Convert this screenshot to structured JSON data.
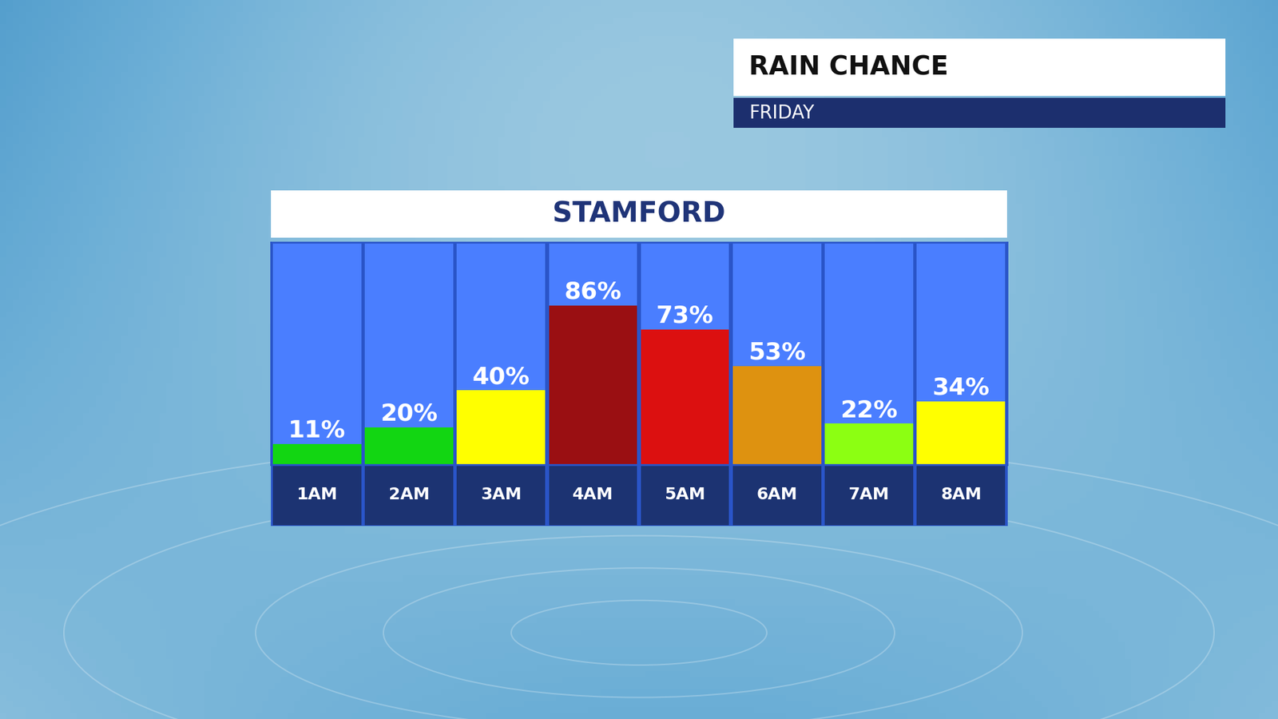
{
  "header": {
    "title": "RAIN CHANCE",
    "subtitle": "FRIDAY"
  },
  "chart_data": {
    "type": "bar",
    "title": "STAMFORD",
    "categories": [
      "1AM",
      "2AM",
      "3AM",
      "4AM",
      "5AM",
      "6AM",
      "7AM",
      "8AM"
    ],
    "values": [
      11,
      20,
      40,
      86,
      73,
      53,
      22,
      34
    ],
    "value_labels": [
      "11%",
      "20%",
      "40%",
      "86%",
      "73%",
      "53%",
      "22%",
      "34%"
    ],
    "colors": [
      "#12d612",
      "#12d612",
      "#ffff00",
      "#9a0f12",
      "#dc1010",
      "#de9210",
      "#8cff12",
      "#ffff00"
    ],
    "ylim": [
      0,
      120
    ],
    "data_labels": true,
    "tick_labels": "x",
    "grid": false
  }
}
